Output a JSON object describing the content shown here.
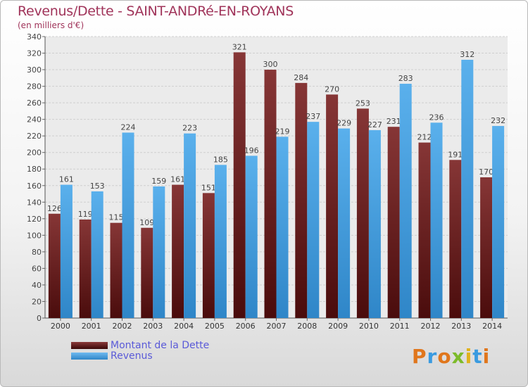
{
  "colors": {
    "dette": "#7a2a2a",
    "revenus": "#4ea6e6",
    "title": "#a0345a",
    "legend_text": "#5a5ad8"
  },
  "legend": {
    "items": [
      {
        "label": "Montant de la Dette",
        "color": "#7a2a2a"
      },
      {
        "label": "Revenus",
        "color": "#4ea6e6"
      }
    ]
  },
  "logo": {
    "text": "Proxiti"
  },
  "chart_data": {
    "type": "bar",
    "title": "Revenus/Dette - SAINT-ANDRé-EN-ROYANS",
    "subtitle": "(en milliers d'€)",
    "xlabel": "",
    "ylabel": "",
    "ylim": [
      0,
      340
    ],
    "ytick_step": 20,
    "grid": true,
    "categories": [
      "2000",
      "2001",
      "2002",
      "2003",
      "2004",
      "2005",
      "2006",
      "2007",
      "2008",
      "2009",
      "2010",
      "2011",
      "2012",
      "2013",
      "2014"
    ],
    "series": [
      {
        "name": "Montant de la Dette",
        "values": [
          126,
          119,
          115,
          109,
          161,
          151,
          321,
          300,
          284,
          270,
          253,
          231,
          212,
          191,
          170
        ]
      },
      {
        "name": "Revenus",
        "values": [
          161,
          153,
          224,
          159,
          223,
          185,
          196,
          219,
          237,
          229,
          227,
          283,
          236,
          312,
          232
        ]
      }
    ]
  }
}
